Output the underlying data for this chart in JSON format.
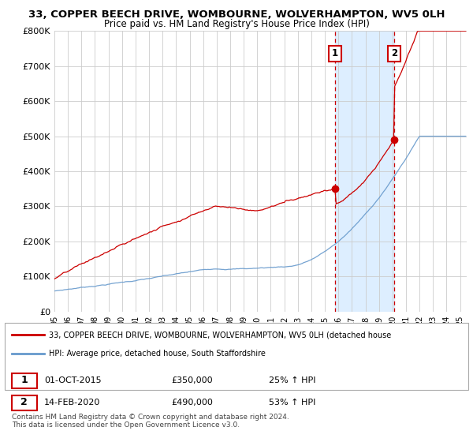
{
  "title1": "33, COPPER BEECH DRIVE, WOMBOURNE, WOLVERHAMPTON, WV5 0LH",
  "title2": "Price paid vs. HM Land Registry's House Price Index (HPI)",
  "ylim": [
    0,
    800000
  ],
  "yticks": [
    0,
    100000,
    200000,
    300000,
    400000,
    500000,
    600000,
    700000,
    800000
  ],
  "ytick_labels": [
    "£0",
    "£100K",
    "£200K",
    "£300K",
    "£400K",
    "£500K",
    "£600K",
    "£700K",
    "£800K"
  ],
  "sale1_date": 2015.75,
  "sale1_price": 350000,
  "sale1_label": "01-OCT-2015",
  "sale1_pct": "25%",
  "sale2_date": 2020.12,
  "sale2_price": 490000,
  "sale2_label": "14-FEB-2020",
  "sale2_pct": "53%",
  "red_color": "#cc0000",
  "blue_color": "#6699cc",
  "shade_color": "#ddeeff",
  "grid_color": "#cccccc",
  "legend_label1": "33, COPPER BEECH DRIVE, WOMBOURNE, WOLVERHAMPTON, WV5 0LH (detached house",
  "legend_label2": "HPI: Average price, detached house, South Staffordshire",
  "footnote": "Contains HM Land Registry data © Crown copyright and database right 2024.\nThis data is licensed under the Open Government Licence v3.0."
}
